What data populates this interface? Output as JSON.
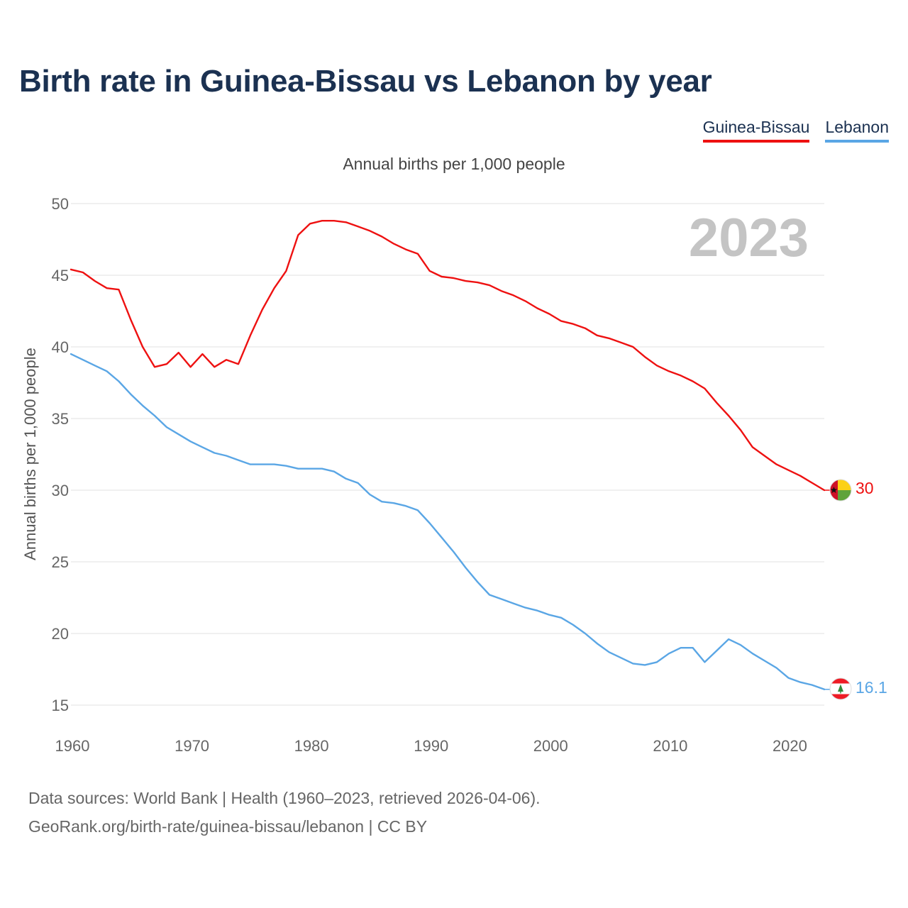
{
  "title": "Birth rate in Guinea-Bissau vs Lebanon by year",
  "subtitle": "Annual births per 1,000 people",
  "legend": [
    {
      "label": "Guinea-Bissau",
      "color": "#ee1111"
    },
    {
      "label": "Lebanon",
      "color": "#5aa6e5"
    }
  ],
  "year_label": "2023",
  "footer": {
    "line1": "Data sources: World Bank | Health (1960–2023, retrieved 2026-04-06).",
    "line2": "GeoRank.org/birth-rate/guinea-bissau/lebanon | CC BY"
  },
  "chart_data": {
    "type": "line",
    "title": "Birth rate in Guinea-Bissau vs Lebanon by year",
    "subtitle": "Annual births per 1,000 people",
    "xlabel": "",
    "ylabel": "Annual births per 1,000 people",
    "xlim": [
      1960,
      2023
    ],
    "ylim": [
      15,
      50
    ],
    "x_ticks": [
      1960,
      1970,
      1980,
      1990,
      2000,
      2010,
      2020
    ],
    "y_ticks": [
      15,
      20,
      25,
      30,
      35,
      40,
      45,
      50
    ],
    "grid": "horizontal",
    "x": [
      1960,
      1961,
      1962,
      1963,
      1964,
      1965,
      1966,
      1967,
      1968,
      1969,
      1970,
      1971,
      1972,
      1973,
      1974,
      1975,
      1976,
      1977,
      1978,
      1979,
      1980,
      1981,
      1982,
      1983,
      1984,
      1985,
      1986,
      1987,
      1988,
      1989,
      1990,
      1991,
      1992,
      1993,
      1994,
      1995,
      1996,
      1997,
      1998,
      1999,
      2000,
      2001,
      2002,
      2003,
      2004,
      2005,
      2006,
      2007,
      2008,
      2009,
      2010,
      2011,
      2012,
      2013,
      2014,
      2015,
      2016,
      2017,
      2018,
      2019,
      2020,
      2021,
      2022,
      2023
    ],
    "series": [
      {
        "name": "Guinea-Bissau",
        "color": "#ee1111",
        "end_label": "30",
        "values": [
          45.4,
          45.2,
          44.6,
          44.1,
          44.0,
          41.9,
          40.0,
          38.6,
          38.8,
          39.6,
          38.6,
          39.5,
          38.6,
          39.1,
          38.8,
          40.8,
          42.6,
          44.1,
          45.3,
          47.8,
          48.6,
          48.8,
          48.8,
          48.7,
          48.4,
          48.1,
          47.7,
          47.2,
          46.8,
          46.5,
          45.3,
          44.9,
          44.8,
          44.6,
          44.5,
          44.3,
          43.9,
          43.6,
          43.2,
          42.7,
          42.3,
          41.8,
          41.6,
          41.3,
          40.8,
          40.6,
          40.3,
          40.0,
          39.3,
          38.7,
          38.3,
          38.0,
          37.6,
          37.1,
          36.1,
          35.2,
          34.2,
          33.0,
          32.4,
          31.8,
          31.4,
          31.0,
          30.5,
          30.0
        ]
      },
      {
        "name": "Lebanon",
        "color": "#5aa6e5",
        "end_label": "16.1",
        "values": [
          39.5,
          39.1,
          38.7,
          38.3,
          37.6,
          36.7,
          35.9,
          35.2,
          34.4,
          33.9,
          33.4,
          33.0,
          32.6,
          32.4,
          32.1,
          31.8,
          31.8,
          31.8,
          31.7,
          31.5,
          31.5,
          31.5,
          31.3,
          30.8,
          30.5,
          29.7,
          29.2,
          29.1,
          28.9,
          28.6,
          27.7,
          26.7,
          25.7,
          24.6,
          23.6,
          22.7,
          22.4,
          22.1,
          21.8,
          21.6,
          21.3,
          21.1,
          20.6,
          20.0,
          19.3,
          18.7,
          18.3,
          17.9,
          17.8,
          18.0,
          18.6,
          19.0,
          19.0,
          18.0,
          18.8,
          19.6,
          19.2,
          18.6,
          18.1,
          17.6,
          16.9,
          16.6,
          16.4,
          16.1
        ]
      }
    ]
  }
}
